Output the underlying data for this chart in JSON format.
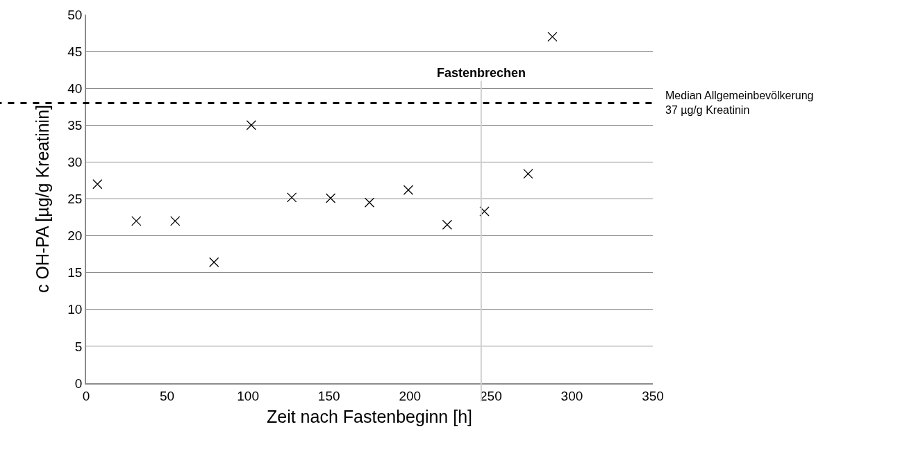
{
  "chart_data": {
    "type": "scatter",
    "xlabel": "Zeit nach Fastenbeginn [h]",
    "ylabel": "c OH-PA [µg/g Kreatinin]",
    "x": [
      7,
      31,
      55,
      79,
      102,
      127,
      151,
      175,
      199,
      223,
      246,
      273,
      288
    ],
    "values": [
      27,
      22,
      22,
      16.4,
      35,
      25.2,
      25.1,
      24.5,
      26.2,
      21.5,
      23.3,
      28.4,
      47
    ],
    "color": "#000000",
    "marker": "cross",
    "xlim": [
      0,
      350
    ],
    "xticks": [
      0,
      50,
      100,
      150,
      200,
      250,
      300,
      350
    ],
    "ylim": [
      0,
      50
    ],
    "yticks": [
      0,
      5,
      10,
      15,
      20,
      25,
      30,
      35,
      40,
      45,
      50
    ],
    "grid": "y",
    "legend": false,
    "ref_lines": [
      {
        "axis": "y",
        "value": 38,
        "label": "Median Allgemeinbevölkerung\n37 µg/g Kreatinin",
        "color": "#000000",
        "line_style": "dashed"
      },
      {
        "axis": "x",
        "value": 244,
        "label": "Fastenbrechen",
        "color": "#d0d0d0",
        "line_style": "solid"
      }
    ]
  }
}
